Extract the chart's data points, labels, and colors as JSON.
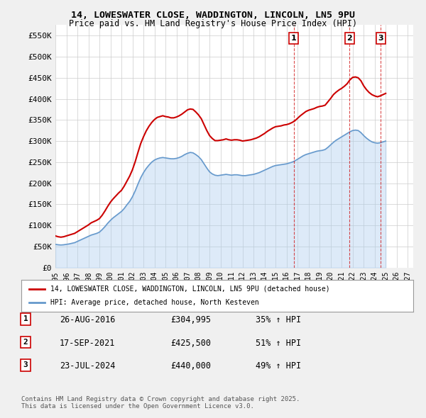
{
  "title": "14, LOWESWATER CLOSE, WADDINGTON, LINCOLN, LN5 9PU",
  "subtitle": "Price paid vs. HM Land Registry's House Price Index (HPI)",
  "ylabel": "",
  "xlabel": "",
  "ylim": [
    0,
    575000
  ],
  "yticks": [
    0,
    50000,
    100000,
    150000,
    200000,
    250000,
    300000,
    350000,
    400000,
    450000,
    500000,
    550000
  ],
  "ytick_labels": [
    "£0",
    "£50K",
    "£100K",
    "£150K",
    "£200K",
    "£250K",
    "£300K",
    "£350K",
    "£400K",
    "£450K",
    "£500K",
    "£550K"
  ],
  "xlim_start": 1995.0,
  "xlim_end": 2027.5,
  "bg_color": "#f0f0f0",
  "plot_bg_color": "#ffffff",
  "grid_color": "#cccccc",
  "red_color": "#cc0000",
  "blue_color": "#6699cc",
  "blue_fill_color": "#aaccee",
  "transactions": [
    {
      "num": 1,
      "date": "26-AUG-2016",
      "price": 304995,
      "pct": "35%",
      "year": 2016.65
    },
    {
      "num": 2,
      "date": "17-SEP-2021",
      "price": 425500,
      "pct": "51%",
      "year": 2021.71
    },
    {
      "num": 3,
      "date": "23-JUL-2024",
      "price": 440000,
      "pct": "49%",
      "year": 2024.55
    }
  ],
  "legend_line1": "14, LOWESWATER CLOSE, WADDINGTON, LINCOLN, LN5 9PU (detached house)",
  "legend_line2": "HPI: Average price, detached house, North Kesteven",
  "footnote": "Contains HM Land Registry data © Crown copyright and database right 2025.\nThis data is licensed under the Open Government Licence v3.0.",
  "hpi_years": [
    1995.0,
    1995.25,
    1995.5,
    1995.75,
    1996.0,
    1996.25,
    1996.5,
    1996.75,
    1997.0,
    1997.25,
    1997.5,
    1997.75,
    1998.0,
    1998.25,
    1998.5,
    1998.75,
    1999.0,
    1999.25,
    1999.5,
    1999.75,
    2000.0,
    2000.25,
    2000.5,
    2000.75,
    2001.0,
    2001.25,
    2001.5,
    2001.75,
    2002.0,
    2002.25,
    2002.5,
    2002.75,
    2003.0,
    2003.25,
    2003.5,
    2003.75,
    2004.0,
    2004.25,
    2004.5,
    2004.75,
    2005.0,
    2005.25,
    2005.5,
    2005.75,
    2006.0,
    2006.25,
    2006.5,
    2006.75,
    2007.0,
    2007.25,
    2007.5,
    2007.75,
    2008.0,
    2008.25,
    2008.5,
    2008.75,
    2009.0,
    2009.25,
    2009.5,
    2009.75,
    2010.0,
    2010.25,
    2010.5,
    2010.75,
    2011.0,
    2011.25,
    2011.5,
    2011.75,
    2012.0,
    2012.25,
    2012.5,
    2012.75,
    2013.0,
    2013.25,
    2013.5,
    2013.75,
    2014.0,
    2014.25,
    2014.5,
    2014.75,
    2015.0,
    2015.25,
    2015.5,
    2015.75,
    2016.0,
    2016.25,
    2016.5,
    2016.75,
    2017.0,
    2017.25,
    2017.5,
    2017.75,
    2018.0,
    2018.25,
    2018.5,
    2018.75,
    2019.0,
    2019.25,
    2019.5,
    2019.75,
    2020.0,
    2020.25,
    2020.5,
    2020.75,
    2021.0,
    2021.25,
    2021.5,
    2021.75,
    2022.0,
    2022.25,
    2022.5,
    2022.75,
    2023.0,
    2023.25,
    2023.5,
    2023.75,
    2024.0,
    2024.25,
    2024.5,
    2024.75,
    2025.0
  ],
  "hpi_values": [
    55000,
    54000,
    53500,
    54000,
    55000,
    56000,
    57500,
    59000,
    62000,
    65000,
    68000,
    71000,
    74000,
    77000,
    79000,
    81000,
    84000,
    90000,
    97000,
    105000,
    112000,
    118000,
    123000,
    128000,
    133000,
    140000,
    149000,
    157000,
    168000,
    182000,
    198000,
    213000,
    225000,
    235000,
    243000,
    250000,
    255000,
    258000,
    260000,
    261000,
    260000,
    259000,
    258000,
    258000,
    259000,
    261000,
    264000,
    268000,
    271000,
    273000,
    272000,
    268000,
    263000,
    256000,
    246000,
    236000,
    227000,
    222000,
    219000,
    218000,
    219000,
    220000,
    221000,
    220000,
    219000,
    220000,
    220000,
    219000,
    218000,
    218000,
    219000,
    220000,
    221000,
    223000,
    225000,
    228000,
    231000,
    234000,
    237000,
    240000,
    242000,
    243000,
    244000,
    245000,
    246000,
    248000,
    250000,
    253000,
    257000,
    261000,
    265000,
    268000,
    270000,
    272000,
    274000,
    276000,
    277000,
    278000,
    280000,
    285000,
    291000,
    297000,
    302000,
    306000,
    310000,
    314000,
    318000,
    322000,
    325000,
    326000,
    325000,
    320000,
    313000,
    307000,
    302000,
    298000,
    296000,
    295000,
    296000,
    298000,
    300000
  ],
  "red_years": [
    1995.0,
    1995.25,
    1995.5,
    1995.75,
    1996.0,
    1996.25,
    1996.5,
    1996.75,
    1997.0,
    1997.25,
    1997.5,
    1997.75,
    1998.0,
    1998.25,
    1998.5,
    1998.75,
    1999.0,
    1999.25,
    1999.5,
    1999.75,
    2000.0,
    2000.25,
    2000.5,
    2000.75,
    2001.0,
    2001.25,
    2001.5,
    2001.75,
    2002.0,
    2002.25,
    2002.5,
    2002.75,
    2003.0,
    2003.25,
    2003.5,
    2003.75,
    2004.0,
    2004.25,
    2004.5,
    2004.75,
    2005.0,
    2005.25,
    2005.5,
    2005.75,
    2006.0,
    2006.25,
    2006.5,
    2006.75,
    2007.0,
    2007.25,
    2007.5,
    2007.75,
    2008.0,
    2008.25,
    2008.5,
    2008.75,
    2009.0,
    2009.25,
    2009.5,
    2009.75,
    2010.0,
    2010.25,
    2010.5,
    2010.75,
    2011.0,
    2011.25,
    2011.5,
    2011.75,
    2012.0,
    2012.25,
    2012.5,
    2012.75,
    2013.0,
    2013.25,
    2013.5,
    2013.75,
    2014.0,
    2014.25,
    2014.5,
    2014.75,
    2015.0,
    2015.25,
    2015.5,
    2015.75,
    2016.0,
    2016.25,
    2016.5,
    2016.75,
    2017.0,
    2017.25,
    2017.5,
    2017.75,
    2018.0,
    2018.25,
    2018.5,
    2018.75,
    2019.0,
    2019.25,
    2019.5,
    2019.75,
    2020.0,
    2020.25,
    2020.5,
    2020.75,
    2021.0,
    2021.25,
    2021.5,
    2021.75,
    2022.0,
    2022.25,
    2022.5,
    2022.75,
    2023.0,
    2023.25,
    2023.5,
    2023.75,
    2024.0,
    2024.25,
    2024.5,
    2024.75,
    2025.0
  ],
  "red_values": [
    75000,
    73000,
    72000,
    73000,
    75000,
    77000,
    79000,
    81000,
    85000,
    89000,
    93000,
    97000,
    101000,
    106000,
    109000,
    112000,
    116000,
    124000,
    134000,
    145000,
    155000,
    163000,
    170000,
    177000,
    183000,
    193000,
    205000,
    217000,
    232000,
    251000,
    273000,
    294000,
    310000,
    324000,
    335000,
    344000,
    351000,
    356000,
    358000,
    360000,
    358000,
    357000,
    355000,
    355000,
    357000,
    360000,
    364000,
    369000,
    374000,
    376000,
    375000,
    369000,
    362000,
    353000,
    339000,
    325000,
    313000,
    306000,
    301000,
    301000,
    302000,
    303000,
    305000,
    303000,
    302000,
    303000,
    303000,
    302000,
    300000,
    301000,
    302000,
    303000,
    305000,
    307000,
    310000,
    314000,
    318000,
    323000,
    327000,
    331000,
    334000,
    335000,
    336000,
    338000,
    339000,
    341000,
    344000,
    348000,
    354000,
    360000,
    365000,
    370000,
    373000,
    375000,
    377000,
    380000,
    382000,
    383000,
    385000,
    393000,
    401000,
    410000,
    416000,
    421000,
    425000,
    430000,
    436000,
    445000,
    451000,
    452000,
    450000,
    443000,
    431000,
    422000,
    415000,
    410000,
    407000,
    405000,
    407000,
    410000,
    413000
  ]
}
